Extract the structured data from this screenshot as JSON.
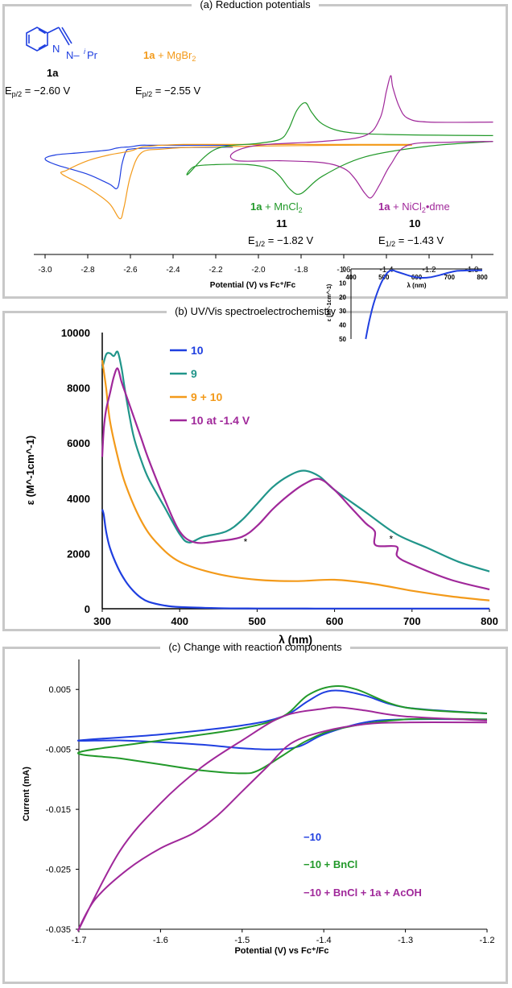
{
  "panels": [
    {
      "title": "(a) Reduction potentials"
    },
    {
      "title": "(b) UV/Vis spectroelectrochemistry"
    },
    {
      "title": "(c) Change with reaction components"
    }
  ],
  "colors": {
    "blue": "#1f3fe0",
    "orange": "#f39a1a",
    "green": "#22992a",
    "purple": "#a0289a",
    "teal": "#21958a"
  },
  "panel_a_labels": {
    "structure_N1": "N",
    "structure_N2": "N–",
    "structure_i": "i",
    "structure_pr": "Pr",
    "cpd_1a": "1a",
    "ep_1a": "E",
    "ep_1a_sub": "p/2",
    "ep_1a_val": " = −2.60 V",
    "mg_bold": "1a",
    "mg_rest": " + MgBr",
    "mg_sub": "2",
    "ep_mg": "E",
    "ep_mg_sub": "p/2",
    "ep_mg_val": " = −2.55 V",
    "mn_bold": "1a",
    "mn_rest": " + MnCl",
    "mn_sub": "2",
    "mn_num": "11",
    "mn_e": "E",
    "mn_e_sub": "1/2",
    "mn_e_val": " = −1.82 V",
    "ni_bold": "1a",
    "ni_rest": " + NiCl",
    "ni_sub": "2",
    "ni_rest2": "•dme",
    "ni_num": "10",
    "ni_e": "E",
    "ni_e_sub": "1/2",
    "ni_e_val": " = −1.43 V"
  },
  "chart_data": [
    {
      "type": "line",
      "xlabel": "Potential (V) vs Fc⁺/Fc",
      "xlim": [
        -3.02,
        -0.9
      ],
      "xticks": [
        "-3.0",
        "-2.8",
        "-2.6",
        "-2.4",
        "-2.2",
        "-2.0",
        "-1.8",
        "-1.6",
        "-1.4",
        "-1.2",
        "-1.0"
      ],
      "xtick_values": [
        -3.0,
        -2.8,
        -2.6,
        -2.4,
        -2.2,
        -2.0,
        -1.8,
        -1.6,
        -1.4,
        -1.2,
        -1.0
      ],
      "series": [
        {
          "name": "1a",
          "color": "blue",
          "x": [
            -2.12,
            -2.2,
            -2.4,
            -2.55,
            -2.6,
            -2.62,
            -2.64,
            -2.66,
            -2.7,
            -2.8,
            -2.95,
            -3.0,
            -2.95,
            -2.85,
            -2.75,
            -2.7,
            -2.67,
            -2.65,
            -2.63,
            -2.6,
            -2.55,
            -2.5,
            -2.4,
            -2.3,
            -2.12
          ],
          "y": [
            0.15,
            0.15,
            0.14,
            0.12,
            0.1,
            0.05,
            -0.3,
            -0.9,
            -0.8,
            -0.55,
            -0.3,
            -0.15,
            -0.05,
            0.0,
            0.05,
            0.08,
            0.12,
            0.14,
            0.15,
            0.16,
            0.2,
            0.2,
            0.2,
            0.2,
            0.2
          ]
        },
        {
          "name": "1a + MgBr2",
          "color": "orange",
          "x": [
            -1.28,
            -1.6,
            -2.0,
            -2.3,
            -2.45,
            -2.55,
            -2.6,
            -2.63,
            -2.65,
            -2.7,
            -2.8,
            -2.92,
            -2.9,
            -2.8,
            -2.7,
            -2.6,
            -2.55,
            -2.5,
            -2.45,
            -2.35,
            -2.2,
            -2.0,
            -1.8,
            -1.6,
            -1.28
          ],
          "y": [
            0.2,
            0.2,
            0.18,
            0.15,
            0.1,
            0.0,
            -0.6,
            -1.4,
            -1.7,
            -1.3,
            -0.9,
            -0.55,
            -0.45,
            -0.2,
            -0.05,
            0.05,
            0.15,
            0.18,
            0.2,
            0.22,
            0.22,
            0.22,
            0.22,
            0.22,
            0.22
          ]
        },
        {
          "name": "1a + MnCl2",
          "color": "green",
          "x": [
            -0.9,
            -1.4,
            -1.6,
            -1.7,
            -1.75,
            -1.78,
            -1.82,
            -1.86,
            -1.9,
            -2.0,
            -2.2,
            -2.33,
            -2.3,
            -2.2,
            -2.05,
            -1.95,
            -1.9,
            -1.85,
            -1.8,
            -1.7,
            -1.5,
            -1.2,
            -0.9
          ],
          "y": [
            0.45,
            0.48,
            0.55,
            0.75,
            1.05,
            1.3,
            1.1,
            0.6,
            0.35,
            0.25,
            0.1,
            -0.55,
            -0.35,
            -0.3,
            -0.3,
            -0.4,
            -0.6,
            -0.95,
            -1.05,
            -0.6,
            -0.1,
            0.18,
            0.3
          ]
        },
        {
          "name": "1a + NiCl2•dme",
          "color": "purple",
          "x": [
            -0.9,
            -1.2,
            -1.3,
            -1.34,
            -1.37,
            -1.38,
            -1.4,
            -1.43,
            -1.5,
            -1.7,
            -2.0,
            -2.12,
            -2.1,
            -1.9,
            -1.7,
            -1.6,
            -1.55,
            -1.5,
            -1.47,
            -1.43,
            -1.38,
            -1.3,
            -1.1,
            -0.9
          ],
          "y": [
            0.8,
            0.8,
            0.9,
            1.2,
            1.7,
            2.0,
            1.6,
            0.9,
            0.45,
            0.3,
            0.2,
            0.0,
            -0.2,
            -0.2,
            -0.25,
            -0.4,
            -0.65,
            -1.05,
            -1.15,
            -0.8,
            -0.3,
            0.2,
            0.28,
            0.3
          ]
        }
      ]
    },
    {
      "type": "line",
      "xlabel": "λ (nm)",
      "ylabel": "ε (M^-1cm^-1)",
      "xlim": [
        300,
        800
      ],
      "ylim": [
        0,
        10000
      ],
      "xticks": [
        "300",
        "400",
        "500",
        "600",
        "700",
        "800"
      ],
      "yticks": [
        "0",
        "2000",
        "4000",
        "6000",
        "8000",
        "10000"
      ],
      "xtick_values": [
        300,
        400,
        500,
        600,
        700,
        800
      ],
      "ytick_values": [
        0,
        2000,
        4000,
        6000,
        8000,
        10000
      ],
      "legend": [
        "10",
        "9",
        "9 + 10",
        "10 at -1.4 V"
      ],
      "annotations": [
        "*",
        "*"
      ],
      "annotation_points": [
        [
          485,
          2300
        ],
        [
          673,
          2400
        ]
      ],
      "series": [
        {
          "name": "10",
          "color": "blue",
          "x": [
            300,
            302,
            305,
            310,
            320,
            330,
            340,
            350,
            360,
            380,
            400,
            450,
            500,
            550,
            600,
            650,
            700,
            750,
            800
          ],
          "y": [
            3600,
            3400,
            2800,
            2200,
            1500,
            1000,
            650,
            400,
            250,
            120,
            60,
            20,
            10,
            8,
            5,
            5,
            5,
            5,
            5
          ]
        },
        {
          "name": "9",
          "color": "teal",
          "x": [
            300,
            305,
            310,
            315,
            320,
            325,
            330,
            340,
            350,
            360,
            380,
            400,
            412,
            430,
            460,
            480,
            500,
            520,
            540,
            560,
            580,
            600,
            640,
            680,
            720,
            760,
            800
          ],
          "y": [
            8700,
            9200,
            9250,
            9150,
            9300,
            8700,
            7800,
            6300,
            5400,
            4700,
            3700,
            2700,
            2400,
            2600,
            2800,
            3200,
            3800,
            4400,
            4800,
            5000,
            4800,
            4300,
            3500,
            2700,
            2200,
            1700,
            1350
          ]
        },
        {
          "name": "9 + 10",
          "color": "orange",
          "x": [
            300,
            305,
            310,
            320,
            330,
            350,
            370,
            400,
            450,
            500,
            550,
            600,
            650,
            700,
            750,
            800
          ],
          "y": [
            9000,
            8000,
            6800,
            5500,
            4500,
            3200,
            2400,
            1700,
            1250,
            1050,
            1000,
            1050,
            900,
            650,
            450,
            300
          ]
        },
        {
          "name": "10 at -1.4 V",
          "color": "purple",
          "x": [
            300,
            302,
            305,
            310,
            315,
            320,
            325,
            330,
            340,
            350,
            360,
            380,
            400,
            420,
            450,
            480,
            500,
            520,
            540,
            560,
            580,
            600,
            620,
            640,
            652,
            653,
            680,
            681,
            700,
            750,
            800
          ],
          "y": [
            5500,
            6500,
            7200,
            7800,
            8400,
            8700,
            8200,
            7800,
            7000,
            6200,
            5400,
            4000,
            2800,
            2400,
            2450,
            2600,
            3000,
            3600,
            4100,
            4500,
            4700,
            4300,
            3700,
            3100,
            2800,
            2300,
            2250,
            1900,
            1600,
            1050,
            700
          ]
        }
      ]
    },
    {
      "type": "line",
      "xlim": [
        400,
        800
      ],
      "ylim": [
        0,
        50
      ],
      "xlabel": "λ (nm)",
      "ylabel": "ε (M^-1cm^-1)",
      "xticks": [
        "400",
        "500",
        "600",
        "700",
        "800"
      ],
      "yticks": [
        "0",
        "10",
        "20",
        "30",
        "40",
        "50"
      ],
      "xtick_values": [
        400,
        500,
        600,
        700,
        800
      ],
      "ytick_values": [
        0,
        10,
        20,
        30,
        40,
        50
      ],
      "series": [
        {
          "name": "10",
          "color": "blue",
          "x": [
            445,
            455,
            470,
            490,
            510,
            525,
            540,
            560,
            580,
            600,
            620,
            640,
            660,
            680,
            700,
            720,
            740,
            760,
            780,
            800
          ],
          "y": [
            50,
            38,
            24,
            11,
            3,
            1,
            2,
            3.5,
            5,
            6,
            6.3,
            6,
            5,
            3.8,
            2.5,
            1.5,
            1.2,
            1,
            1,
            1
          ]
        }
      ]
    },
    {
      "type": "line",
      "xlabel": "Potential (V) vs Fc⁺/Fc",
      "ylabel": "Current (mA)",
      "xlim": [
        -1.7,
        -1.2
      ],
      "ylim": [
        -0.035,
        0.01
      ],
      "xticks": [
        "-1.7",
        "-1.6",
        "-1.5",
        "-1.4",
        "-1.3",
        "-1.2"
      ],
      "yticks": [
        "0.005",
        "-0.005",
        "-0.015",
        "-0.025",
        "-0.035"
      ],
      "xtick_values": [
        -1.7,
        -1.6,
        -1.5,
        -1.4,
        -1.3,
        -1.2
      ],
      "ytick_values": [
        0.005,
        -0.005,
        -0.015,
        -0.025,
        -0.035
      ],
      "legend": [
        "−10",
        "−10 + BnCl",
        "−10 + BnCl + 1a + AcOH"
      ],
      "series": [
        {
          "name": "−10",
          "color": "blue",
          "x": [
            -1.2,
            -1.3,
            -1.35,
            -1.38,
            -1.4,
            -1.42,
            -1.45,
            -1.5,
            -1.6,
            -1.7,
            -1.65,
            -1.6,
            -1.55,
            -1.5,
            -1.46,
            -1.43,
            -1.4,
            -1.35,
            -1.3,
            -1.2
          ],
          "y": [
            0.001,
            0.002,
            0.004,
            0.0048,
            0.0045,
            0.003,
            0.0005,
            -0.001,
            -0.0025,
            -0.0035,
            -0.0035,
            -0.0038,
            -0.0042,
            -0.0048,
            -0.005,
            -0.0045,
            -0.0025,
            -0.0005,
            0.0,
            0.0
          ]
        },
        {
          "name": "−10 + BnCl",
          "color": "green",
          "x": [
            -1.2,
            -1.3,
            -1.36,
            -1.39,
            -1.42,
            -1.45,
            -1.5,
            -1.6,
            -1.7,
            -1.65,
            -1.6,
            -1.55,
            -1.5,
            -1.48,
            -1.45,
            -1.42,
            -1.38,
            -1.3,
            -1.2
          ],
          "y": [
            0.001,
            0.002,
            0.005,
            0.0055,
            0.004,
            0.0005,
            -0.0015,
            -0.0035,
            -0.0055,
            -0.0065,
            -0.0075,
            -0.0085,
            -0.009,
            -0.0085,
            -0.006,
            -0.0035,
            -0.0015,
            0.0,
            0.0
          ]
        },
        {
          "name": "−10 + BnCl + 1a + AcOH",
          "color": "purple",
          "x": [
            -1.2,
            -1.3,
            -1.35,
            -1.38,
            -1.4,
            -1.45,
            -1.5,
            -1.55,
            -1.6,
            -1.65,
            -1.7,
            -1.68,
            -1.64,
            -1.6,
            -1.56,
            -1.53,
            -1.5,
            -1.47,
            -1.44,
            -1.4,
            -1.35,
            -1.3,
            -1.2
          ],
          "y": [
            -0.0002,
            0.0005,
            0.0015,
            0.002,
            0.0018,
            0.0005,
            -0.0035,
            -0.008,
            -0.014,
            -0.022,
            -0.035,
            -0.03,
            -0.025,
            -0.0215,
            -0.019,
            -0.016,
            -0.012,
            -0.008,
            -0.004,
            -0.002,
            -0.0008,
            -0.0005,
            -0.0005
          ]
        }
      ]
    }
  ]
}
